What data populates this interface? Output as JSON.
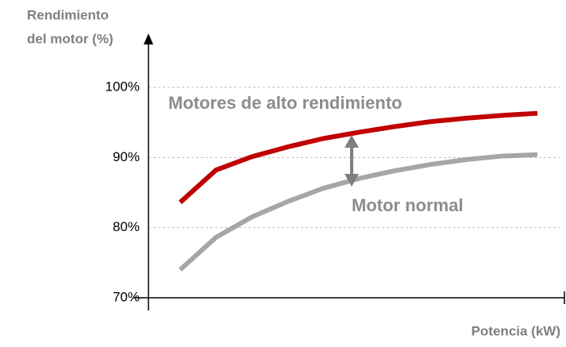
{
  "chart_data": {
    "type": "line",
    "ylabel": [
      "Rendimiento",
      "del motor (%)"
    ],
    "xlabel": "Potencia (kW)",
    "annotations": [
      "Motores de alto rendimiento",
      "Motor normal"
    ],
    "categories": [
      null,
      null,
      null,
      null,
      null,
      null,
      null,
      null,
      null,
      null,
      null
    ],
    "series": [
      {
        "name": "Motores de alto rendimiento",
        "color": "#c00000",
        "values": [
          83.6,
          88.2,
          90.1,
          91.5,
          92.7,
          93.6,
          94.4,
          95.1,
          95.6,
          96.0,
          96.3
        ]
      },
      {
        "name": "Motor normal",
        "color": "#a6a6a6",
        "values": [
          74.0,
          78.6,
          81.5,
          83.7,
          85.6,
          87.0,
          88.1,
          89.0,
          89.7,
          90.2,
          90.4
        ]
      }
    ],
    "ylim": [
      70,
      100
    ],
    "yticks": [
      {
        "value": 70,
        "label": "70%"
      },
      {
        "value": 80,
        "label": "80%"
      },
      {
        "value": 90,
        "label": "90%"
      },
      {
        "value": 100,
        "label": "100%"
      }
    ],
    "grid": true
  }
}
